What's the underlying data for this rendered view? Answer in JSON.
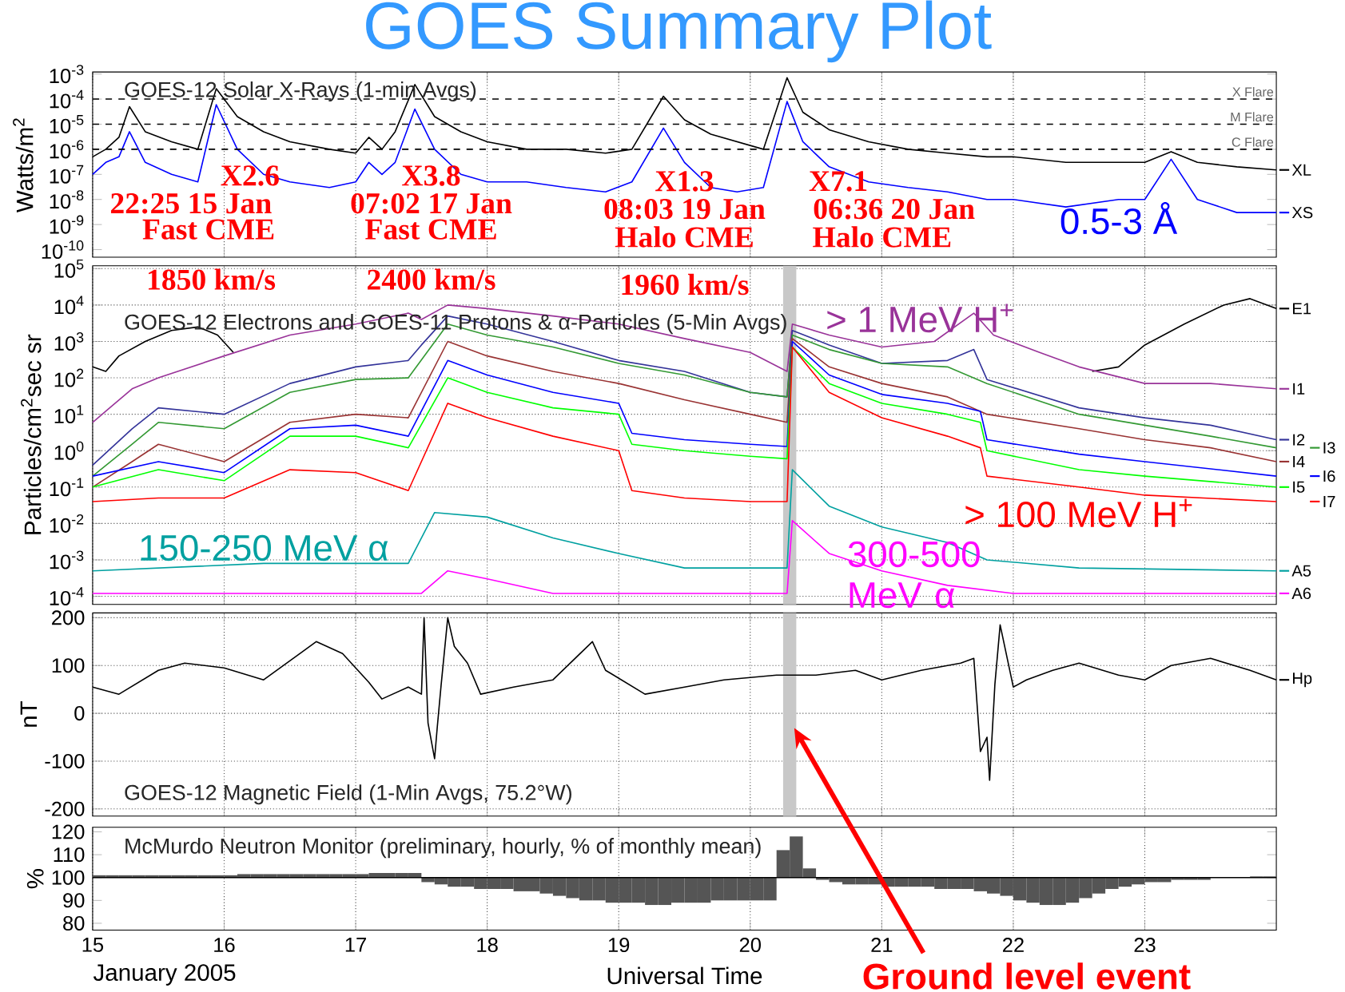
{
  "chart_data": [
    {
      "type": "line",
      "title": "GOES Summary Plot",
      "subtitle": "GOES-12 Solar X-Rays (1-min Avgs)",
      "ylabel": "Watts/m$^{2}$",
      "x": [
        15.0,
        15.1,
        15.2,
        15.28,
        15.4,
        15.6,
        15.8,
        15.94,
        16.1,
        16.3,
        16.5,
        16.8,
        17.0,
        17.1,
        17.2,
        17.3,
        17.45,
        17.6,
        17.8,
        18.0,
        18.3,
        18.6,
        18.9,
        19.1,
        19.34,
        19.5,
        19.7,
        19.9,
        20.1,
        20.28,
        20.4,
        20.6,
        20.9,
        21.2,
        21.5,
        21.8,
        22.0,
        22.4,
        22.8,
        23.0,
        23.2,
        23.4,
        23.7,
        24.0
      ],
      "series": [
        {
          "name": "XL",
          "color": "#000000",
          "values": [
            5e-07,
            1e-06,
            3e-06,
            5e-05,
            5e-06,
            2e-06,
            1e-06,
            0.00026,
            2e-05,
            5e-06,
            2e-06,
            1e-06,
            7e-07,
            3e-06,
            1e-06,
            5e-06,
            0.00038,
            2e-05,
            5e-06,
            2e-06,
            1e-06,
            1e-06,
            7e-07,
            1e-06,
            0.00013,
            1.5e-05,
            4e-06,
            2e-06,
            1e-06,
            0.00071,
            3e-05,
            6e-06,
            2e-06,
            1e-06,
            7e-07,
            5e-07,
            5e-07,
            3e-07,
            3e-07,
            3e-07,
            8e-07,
            3e-07,
            2e-07,
            1.5e-07
          ]
        },
        {
          "name": "XS",
          "color": "#0000ff",
          "values": [
            1e-07,
            3e-07,
            5e-07,
            5e-06,
            3e-07,
            1e-07,
            5e-08,
            6e-05,
            1e-06,
            1e-07,
            5e-08,
            3e-08,
            5e-08,
            3e-07,
            1e-07,
            3e-07,
            4e-05,
            1e-06,
            1e-07,
            5e-08,
            5e-08,
            3e-08,
            2e-08,
            5e-08,
            7e-06,
            3e-07,
            3e-08,
            2e-08,
            3e-08,
            8e-05,
            2e-06,
            2e-07,
            5e-08,
            3e-08,
            2e-08,
            1e-08,
            1e-08,
            5e-09,
            1e-08,
            1e-08,
            4e-07,
            1e-08,
            3e-09,
            3e-09
          ]
        }
      ],
      "xlim": [
        15,
        24
      ],
      "ylim": [
        5e-11,
        0.0012
      ],
      "xticks": [
        15,
        16,
        17,
        18,
        19,
        20,
        21,
        22,
        23
      ],
      "yticks": [
        {
          "value": 1e-10,
          "label": "10$^{-10}$"
        },
        {
          "value": 1e-09,
          "label": "10$^{-9}$"
        },
        {
          "value": 1e-08,
          "label": "10$^{-8}$"
        },
        {
          "value": 1e-07,
          "label": "10$^{-7}$"
        },
        {
          "value": 1e-06,
          "label": "10$^{-6}$"
        },
        {
          "value": 1e-05,
          "label": "10$^{-5}$"
        },
        {
          "value": 0.0001,
          "label": "10$^{-4}$"
        },
        {
          "value": 0.001,
          "label": "10$^{-3}$"
        }
      ],
      "log": true,
      "grid": "x",
      "tick_labels": "y",
      "ref_lines": [
        {
          "axis": "y",
          "value": 0.0001,
          "label": "X Flare",
          "line_style": "dashed"
        },
        {
          "axis": "y",
          "value": 1e-05,
          "label": "M Flare",
          "line_style": "dashed"
        },
        {
          "axis": "y",
          "value": 1e-06,
          "label": "C Flare",
          "line_style": "dashed"
        }
      ],
      "legend": "right",
      "annotations": [
        "X2.6",
        "22:25 15 Jan",
        "Fast CME",
        "X3.8",
        "07:02 17 Jan",
        "Fast CME",
        "X1.3",
        "08:03 19 Jan",
        "Halo CME",
        "X7.1",
        "06:36 20 Jan",
        "Halo CME",
        {
          "text": "0.5-3 Å",
          "x": 22.8,
          "y": 1e-08
        }
      ]
    },
    {
      "type": "line",
      "subtitle": "GOES-12 Electrons and GOES-11 Protons & α-Particles (5-Min Avgs)",
      "ylabel": "Particles/cm$^{2}$sec sr",
      "series": [
        {
          "name": "E1",
          "color": "#000000",
          "x": [
            15.0,
            15.1,
            15.2,
            15.4,
            15.6,
            15.8,
            15.95,
            16.07,
            19.0,
            22.6,
            22.8,
            23.0,
            23.3,
            23.6,
            23.8,
            24.0
          ],
          "values": [
            200,
            150,
            400,
            1000,
            2000,
            2500,
            1500,
            500,
            null,
            150,
            200,
            800,
            3000,
            10000,
            15000,
            8000
          ]
        },
        {
          "name": "I1",
          "color": "#993399",
          "x": [
            15.0,
            15.3,
            15.5,
            16.0,
            16.5,
            17.0,
            17.4,
            17.5,
            17.7,
            18.0,
            18.5,
            19.0,
            19.5,
            20.0,
            20.28,
            20.32,
            20.6,
            21.0,
            21.4,
            21.7,
            21.85,
            22.2,
            22.5,
            23.0,
            23.5,
            24.0
          ],
          "values": [
            6,
            50,
            100,
            400,
            1500,
            3000,
            6000,
            4000,
            10000,
            8000,
            5000,
            3000,
            1200,
            500,
            150,
            3000,
            1500,
            700,
            1000,
            6000,
            1500,
            500,
            200,
            70,
            70,
            50
          ]
        },
        {
          "name": "I2",
          "color": "#333399",
          "x": [
            15.0,
            15.3,
            15.5,
            16.0,
            16.5,
            17.0,
            17.4,
            17.5,
            17.7,
            18.0,
            18.5,
            19.0,
            19.5,
            20.0,
            20.28,
            20.32,
            20.6,
            21.0,
            21.5,
            21.7,
            21.8,
            22.5,
            23.0,
            23.5,
            24.0
          ],
          "values": [
            0.4,
            4,
            15,
            10,
            70,
            200,
            300,
            800,
            5000,
            3000,
            1000,
            300,
            150,
            40,
            30,
            2000,
            800,
            250,
            300,
            600,
            90,
            15,
            8,
            5,
            2
          ]
        },
        {
          "name": "I3",
          "color": "#339933",
          "x": [
            15.0,
            15.3,
            15.5,
            16.0,
            16.5,
            17.0,
            17.4,
            17.7,
            18.0,
            18.5,
            19.0,
            19.5,
            20.0,
            20.28,
            20.32,
            20.6,
            21.0,
            21.5,
            21.8,
            22.5,
            23.0,
            23.5,
            24.0
          ],
          "values": [
            0.2,
            1.5,
            6,
            4,
            40,
            90,
            100,
            3000,
            1500,
            700,
            250,
            120,
            40,
            30,
            1500,
            600,
            250,
            200,
            70,
            10,
            5,
            2.5,
            1.2
          ]
        },
        {
          "name": "I4",
          "color": "#993333",
          "x": [
            15.0,
            15.3,
            15.5,
            16.0,
            16.5,
            17.0,
            17.4,
            17.7,
            18.0,
            18.5,
            19.0,
            19.5,
            20.0,
            20.28,
            20.32,
            20.6,
            21.0,
            21.5,
            21.8,
            22.5,
            23.0,
            23.5,
            24.0
          ],
          "values": [
            0.1,
            0.5,
            1.5,
            0.5,
            6,
            10,
            8,
            1000,
            400,
            150,
            70,
            25,
            10,
            6,
            1200,
            200,
            70,
            30,
            10,
            4,
            2,
            1.2,
            0.5
          ]
        },
        {
          "name": "I6",
          "color": "#0000ff",
          "x": [
            15.0,
            15.5,
            16.0,
            16.5,
            17.0,
            17.4,
            17.7,
            18.0,
            18.5,
            19.0,
            19.1,
            19.5,
            20.0,
            20.28,
            20.32,
            20.6,
            21.0,
            21.5,
            21.75,
            21.8,
            22.5,
            23.0,
            24.0
          ],
          "values": [
            0.2,
            0.5,
            0.25,
            4,
            5,
            2.5,
            300,
            120,
            40,
            20,
            3,
            2,
            1.5,
            1.3,
            1000,
            120,
            35,
            20,
            12,
            2,
            0.8,
            0.5,
            0.2
          ]
        },
        {
          "name": "I5",
          "color": "#00ff00",
          "x": [
            15.0,
            15.5,
            16.0,
            16.5,
            17.0,
            17.4,
            17.7,
            18.0,
            18.5,
            19.0,
            19.1,
            19.5,
            20.0,
            20.28,
            20.32,
            20.6,
            21.0,
            21.5,
            21.75,
            21.8,
            22.5,
            23.0,
            24.0
          ],
          "values": [
            0.1,
            0.3,
            0.15,
            2.5,
            2.5,
            1.2,
            100,
            40,
            15,
            10,
            1.5,
            1,
            0.7,
            0.6,
            700,
            70,
            20,
            10,
            6,
            1,
            0.3,
            0.2,
            0.1
          ]
        },
        {
          "name": "I7",
          "color": "#ff0000",
          "x": [
            15.0,
            15.5,
            16.0,
            16.5,
            17.0,
            17.4,
            17.7,
            18.0,
            18.5,
            19.0,
            19.1,
            19.5,
            20.0,
            20.28,
            20.32,
            20.6,
            21.0,
            21.5,
            21.75,
            21.8,
            22.5,
            23.0,
            24.0
          ],
          "values": [
            0.04,
            0.05,
            0.05,
            0.3,
            0.25,
            0.08,
            20,
            8,
            2.5,
            1,
            0.08,
            0.05,
            0.04,
            0.04,
            700,
            40,
            8,
            2.5,
            1.2,
            0.2,
            0.1,
            0.06,
            0.04
          ]
        },
        {
          "name": "A5",
          "color": "#00a0a0",
          "x": [
            15.0,
            16.3,
            17.4,
            17.6,
            18.0,
            18.5,
            19.0,
            19.5,
            20.28,
            20.32,
            20.6,
            21.0,
            21.5,
            21.8,
            22.5,
            24.0
          ],
          "values": [
            0.0005,
            0.0008,
            0.0008,
            0.02,
            0.015,
            0.004,
            0.0015,
            0.0006,
            0.0006,
            0.3,
            0.03,
            0.008,
            0.003,
            0.001,
            0.0006,
            0.0005
          ]
        },
        {
          "name": "A6",
          "color": "#ff00ff",
          "x": [
            15.0,
            17.5,
            17.7,
            18.0,
            18.5,
            20.28,
            20.32,
            20.6,
            21.0,
            21.5,
            22.0,
            24.0
          ],
          "values": [
            0.00012,
            0.00012,
            0.0005,
            0.0003,
            0.00012,
            0.00012,
            0.012,
            0.0015,
            0.0005,
            0.0002,
            0.00012,
            0.00012
          ]
        }
      ],
      "xlim": [
        15,
        24
      ],
      "ylim": [
        6e-05,
        120000
      ],
      "xticks": [
        15,
        16,
        17,
        18,
        19,
        20,
        21,
        22,
        23
      ],
      "yticks": [
        {
          "value": 0.0001,
          "label": "10$^{-4}$"
        },
        {
          "value": 0.001,
          "label": "10$^{-3}$"
        },
        {
          "value": 0.01,
          "label": "10$^{-2}$"
        },
        {
          "value": 0.1,
          "label": "10$^{-1}$"
        },
        {
          "value": 1,
          "label": "10$^{0}$"
        },
        {
          "value": 10,
          "label": "10$^{1}$"
        },
        {
          "value": 100,
          "label": "10$^{2}$"
        },
        {
          "value": 1000,
          "label": "10$^{3}$"
        },
        {
          "value": 10000,
          "label": "10$^{4}$"
        },
        {
          "value": 100000,
          "label": "10$^{5}$"
        }
      ],
      "log": true,
      "grid": true,
      "tick_labels": "y",
      "bands": [
        {
          "axis": "x",
          "from": 20.25,
          "to": 20.35,
          "color": "#c8c8c8"
        }
      ],
      "legend": "right",
      "annotations": [
        "1850 km/s",
        "2400 km/s",
        "1960 km/s",
        {
          "text": "> 1 MeV H$^{+}$",
          "x": 20.6,
          "y": 1500
        },
        {
          "text": "> 100 MeV H$^{+}$",
          "x": 22.5,
          "y": 0.1
        },
        {
          "text": "150-250 MeV α",
          "x": 16.3,
          "y": 0.0008
        },
        {
          "text": "300-500 MeV α",
          "x": 20.6,
          "y": 0.0015
        }
      ]
    },
    {
      "type": "line",
      "subtitle": "GOES-12 Magnetic Field (1-Min Avgs, 75.2°W)",
      "ylabel": "nT",
      "series": [
        {
          "name": "Hp",
          "color": "#000000",
          "x": [
            15.0,
            15.2,
            15.5,
            15.7,
            16.0,
            16.3,
            16.6,
            16.7,
            16.9,
            17.1,
            17.2,
            17.4,
            17.5,
            17.52,
            17.55,
            17.6,
            17.62,
            17.65,
            17.7,
            17.75,
            17.85,
            17.95,
            18.2,
            18.5,
            18.8,
            18.9,
            19.2,
            19.5,
            19.8,
            20.2,
            20.5,
            20.8,
            21.0,
            21.3,
            21.6,
            21.7,
            21.75,
            21.8,
            21.82,
            21.86,
            21.9,
            22.0,
            22.1,
            22.3,
            22.5,
            22.8,
            23.0,
            23.2,
            23.5,
            23.8,
            24.0
          ],
          "values": [
            55,
            40,
            90,
            105,
            95,
            70,
            130,
            150,
            125,
            65,
            30,
            55,
            40,
            200,
            -20,
            -95,
            -30,
            60,
            200,
            140,
            105,
            40,
            55,
            70,
            150,
            90,
            40,
            55,
            70,
            80,
            80,
            90,
            70,
            90,
            105,
            115,
            -80,
            -50,
            -140,
            60,
            185,
            55,
            70,
            90,
            105,
            80,
            70,
            100,
            115,
            90,
            70
          ]
        }
      ],
      "xlim": [
        15,
        24
      ],
      "ylim": [
        -215,
        210
      ],
      "xticks": [
        15,
        16,
        17,
        18,
        19,
        20,
        21,
        22,
        23
      ],
      "yticks": [
        -200,
        -100,
        0,
        100,
        200
      ],
      "grid": true,
      "tick_labels": "y",
      "bands": [
        {
          "axis": "x",
          "from": 20.25,
          "to": 20.35,
          "color": "#c8c8c8"
        }
      ],
      "legend": "right",
      "annotations": [
        "Ground level event"
      ]
    },
    {
      "type": "bar",
      "subtitle": "McMurdo Neutron Monitor (preliminary, hourly, % of monthly mean)",
      "ylabel": "%",
      "xlabel": "Universal Time",
      "color": "#555555",
      "x": [
        15.05,
        15.15,
        15.25,
        15.35,
        15.45,
        15.55,
        15.65,
        15.75,
        15.85,
        15.95,
        16.05,
        16.15,
        16.25,
        16.35,
        16.45,
        16.55,
        16.65,
        16.75,
        16.85,
        16.95,
        17.05,
        17.15,
        17.25,
        17.35,
        17.45,
        17.55,
        17.65,
        17.75,
        17.85,
        17.95,
        18.05,
        18.15,
        18.25,
        18.35,
        18.45,
        18.55,
        18.65,
        18.75,
        18.85,
        18.95,
        19.05,
        19.15,
        19.25,
        19.35,
        19.45,
        19.55,
        19.65,
        19.75,
        19.85,
        19.95,
        20.05,
        20.15,
        20.25,
        20.35,
        20.45,
        20.55,
        20.65,
        20.75,
        20.85,
        20.95,
        21.05,
        21.15,
        21.25,
        21.35,
        21.45,
        21.55,
        21.65,
        21.75,
        21.85,
        21.95,
        22.05,
        22.15,
        22.25,
        22.35,
        22.45,
        22.55,
        22.65,
        22.75,
        22.85,
        22.95,
        23.05,
        23.15,
        23.25,
        23.35,
        23.45,
        23.55,
        23.65,
        23.75,
        23.85,
        23.95
      ],
      "values": [
        1,
        1,
        1,
        1,
        1,
        1,
        1,
        1,
        1,
        1,
        1,
        1.5,
        1.5,
        1.5,
        1.5,
        1.5,
        1.5,
        1.5,
        1.5,
        1.5,
        1.5,
        2,
        2,
        2,
        2,
        -2,
        -3,
        -4,
        -4,
        -5,
        -5,
        -5,
        -6,
        -6,
        -7,
        -8,
        -9,
        -10,
        -10,
        -11,
        -11,
        -11,
        -12,
        -12,
        -11,
        -11,
        -11,
        -10,
        -10,
        -10,
        -10,
        -10,
        12,
        18,
        4,
        -1,
        -2,
        -3,
        -3,
        -3,
        -4,
        -4,
        -4,
        -4,
        -5,
        -5,
        -5,
        -6,
        -7,
        -8,
        -10,
        -11,
        -12,
        -12,
        -11,
        -9,
        -7,
        -5,
        -4,
        -3,
        -2,
        -2,
        -1,
        -1,
        -1,
        null,
        null,
        null,
        0.5,
        0.5
      ],
      "base": [
        100,
        100,
        100,
        100,
        100,
        100,
        100,
        100,
        100,
        100,
        100,
        100,
        100,
        100,
        100,
        100,
        100,
        100,
        100,
        100,
        100,
        100,
        100,
        100,
        100,
        100,
        100,
        100,
        100,
        100,
        100,
        100,
        100,
        100,
        100,
        100,
        100,
        100,
        100,
        100,
        100,
        100,
        100,
        100,
        100,
        100,
        100,
        100,
        100,
        100,
        100,
        100,
        100,
        100,
        100,
        100,
        100,
        100,
        100,
        100,
        100,
        100,
        100,
        100,
        100,
        100,
        100,
        100,
        100,
        100,
        100,
        100,
        100,
        100,
        100,
        100,
        100,
        100,
        100,
        100,
        100,
        100,
        100,
        100,
        100,
        null,
        null,
        null,
        100,
        100
      ],
      "xlim": [
        15,
        24
      ],
      "ylim": [
        77,
        122
      ],
      "xticks": [
        15,
        16,
        17,
        18,
        19,
        20,
        21,
        22,
        23
      ],
      "yticks": [
        80,
        90,
        100,
        110,
        120
      ],
      "grid": "x",
      "ref_lines": [
        {
          "axis": "y",
          "value": 100
        }
      ],
      "annotations": [
        "January 2005"
      ]
    }
  ]
}
